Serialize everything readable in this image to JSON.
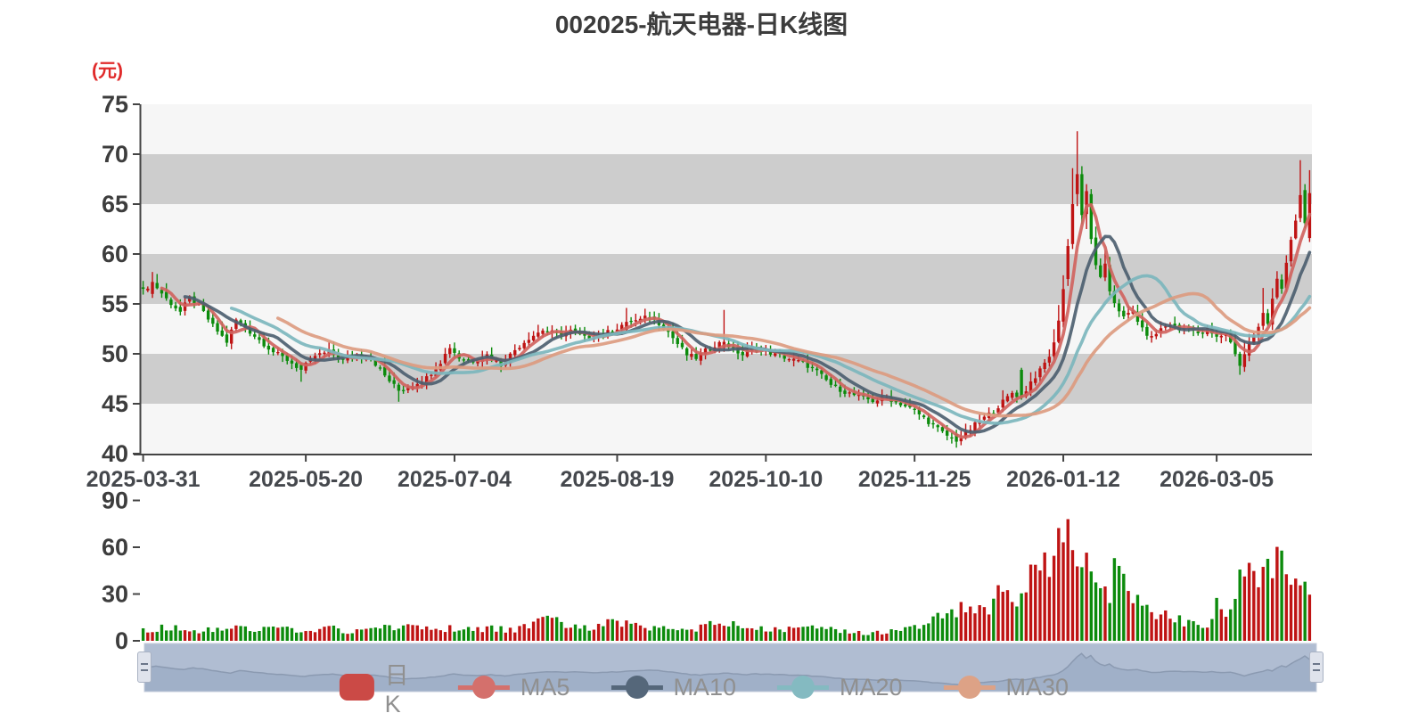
{
  "title": "002025-航天电器-日K线图",
  "unit_label": "(元)",
  "legend": [
    {
      "key": "rik",
      "label": "日K",
      "type": "candle",
      "color": "#cb4a46"
    },
    {
      "key": "ma5",
      "label": "MA5",
      "type": "line",
      "color": "#d4706c"
    },
    {
      "key": "ma10",
      "label": "MA10",
      "type": "line",
      "color": "#55677a"
    },
    {
      "key": "ma20",
      "label": "MA20",
      "type": "line",
      "color": "#84bac1"
    },
    {
      "key": "ma30",
      "label": "MA30",
      "type": "line",
      "color": "#dda286"
    }
  ],
  "colors": {
    "up": "#bf1414",
    "down": "#0c8b0c",
    "ma5": "#d0645f",
    "ma10": "#4d6070",
    "ma20": "#7cb6bd",
    "ma30": "#dc9b80",
    "band_gray": "#cdcdcd",
    "band_light": "#f6f6f6",
    "axis": "#444444",
    "tick_text": "#3d3d3d",
    "x_text": "#45484d",
    "legend_text": "#909090",
    "nav_bg": "#b0bdd2",
    "nav_fill": "#a0b0c8",
    "nav_line": "#8b9ab1",
    "nav_border": "#c3cbdb",
    "unit_red": "#e02a2a"
  },
  "chart_data": {
    "type": "candlestick",
    "title": "002025-航天电器-日K线图",
    "unit": "(元)",
    "price_axis": {
      "ticks": [
        75,
        70,
        65,
        60,
        55,
        50,
        45,
        40
      ],
      "range": [
        40,
        75
      ]
    },
    "volume_axis": {
      "ticks": [
        90,
        60,
        30,
        0
      ],
      "range": [
        0,
        90
      ]
    },
    "x_tick_labels": [
      {
        "label": "2025-03-31",
        "day": 0
      },
      {
        "label": "2025-05-20",
        "day": 35
      },
      {
        "label": "2025-07-04",
        "day": 67
      },
      {
        "label": "2025-08-19",
        "day": 102
      },
      {
        "label": "2025-10-10",
        "day": 134
      },
      {
        "label": "2025-11-25",
        "day": 166
      },
      {
        "label": "2026-01-12",
        "day": 198
      },
      {
        "label": "2026-03-05",
        "day": 231
      }
    ],
    "trading_days": 252,
    "series_names": [
      "日K",
      "MA5",
      "MA10",
      "MA20",
      "MA30"
    ],
    "key_points": {
      "start_close": 56.3,
      "period_high": 72.3,
      "period_high_day": 201,
      "period_low": 40.6,
      "period_low_day": 175,
      "last_close": 66.1,
      "max_volume": 78,
      "max_volume_day": 199
    },
    "close_anchors": [
      [
        0,
        56.3
      ],
      [
        2,
        57.2
      ],
      [
        5,
        55.5
      ],
      [
        8,
        54.2
      ],
      [
        10,
        55.6
      ],
      [
        12,
        54.8
      ],
      [
        15,
        52.8
      ],
      [
        18,
        51.2
      ],
      [
        20,
        53.4
      ],
      [
        22,
        52.6
      ],
      [
        25,
        51.4
      ],
      [
        28,
        50.2
      ],
      [
        31,
        49.4
      ],
      [
        34,
        48.4
      ],
      [
        37,
        49.8
      ],
      [
        40,
        50.2
      ],
      [
        43,
        49.3
      ],
      [
        46,
        49.9
      ],
      [
        49,
        49.6
      ],
      [
        52,
        47.8
      ],
      [
        55,
        46.3
      ],
      [
        58,
        46.9
      ],
      [
        61,
        47.6
      ],
      [
        64,
        49.2
      ],
      [
        66,
        50.7
      ],
      [
        68,
        49.6
      ],
      [
        71,
        49.3
      ],
      [
        74,
        49.9
      ],
      [
        77,
        48.9
      ],
      [
        80,
        50.4
      ],
      [
        83,
        51.6
      ],
      [
        86,
        52.4
      ],
      [
        89,
        52.0
      ],
      [
        92,
        52.3
      ],
      [
        95,
        51.6
      ],
      [
        98,
        51.9
      ],
      [
        101,
        52.3
      ],
      [
        104,
        53.2
      ],
      [
        107,
        53.4
      ],
      [
        109,
        53.8
      ],
      [
        111,
        53.1
      ],
      [
        113,
        52.2
      ],
      [
        115,
        51.0
      ],
      [
        117,
        49.9
      ],
      [
        119,
        49.6
      ],
      [
        121,
        50.3
      ],
      [
        123,
        50.9
      ],
      [
        125,
        51.2
      ],
      [
        127,
        50.4
      ],
      [
        129,
        49.9
      ],
      [
        131,
        50.6
      ],
      [
        133,
        50.3
      ],
      [
        136,
        50.0
      ],
      [
        139,
        49.5
      ],
      [
        142,
        49.1
      ],
      [
        145,
        48.2
      ],
      [
        148,
        46.9
      ],
      [
        151,
        46.2
      ],
      [
        154,
        45.7
      ],
      [
        157,
        45.3
      ],
      [
        160,
        45.6
      ],
      [
        163,
        45.0
      ],
      [
        166,
        44.3
      ],
      [
        169,
        43.2
      ],
      [
        172,
        42.1
      ],
      [
        175,
        41.2
      ],
      [
        177,
        42.0
      ],
      [
        179,
        42.9
      ],
      [
        181,
        43.6
      ],
      [
        183,
        44.3
      ],
      [
        185,
        45.2
      ],
      [
        187,
        46.1
      ],
      [
        189,
        45.6
      ],
      [
        191,
        47.2
      ],
      [
        193,
        48.3
      ],
      [
        195,
        49.8
      ],
      [
        196,
        51.0
      ],
      [
        197,
        53.5
      ],
      [
        198,
        56.5
      ],
      [
        199,
        60.8
      ],
      [
        200,
        65.0
      ],
      [
        201,
        68.0
      ],
      [
        202,
        63.9
      ],
      [
        203,
        66.3
      ],
      [
        204,
        61.5
      ],
      [
        205,
        59.0
      ],
      [
        206,
        57.5
      ],
      [
        207,
        58.8
      ],
      [
        208,
        56.3
      ],
      [
        209,
        55.2
      ],
      [
        211,
        53.6
      ],
      [
        213,
        54.3
      ],
      [
        215,
        52.4
      ],
      [
        217,
        51.6
      ],
      [
        219,
        52.5
      ],
      [
        221,
        53.0
      ],
      [
        223,
        52.4
      ],
      [
        225,
        52.8
      ],
      [
        227,
        51.9
      ],
      [
        229,
        52.4
      ],
      [
        231,
        51.6
      ],
      [
        233,
        52.1
      ],
      [
        235,
        50.1
      ],
      [
        236,
        48.8
      ],
      [
        237,
        49.9
      ],
      [
        238,
        51.1
      ],
      [
        240,
        52.6
      ],
      [
        241,
        54.1
      ],
      [
        242,
        53.2
      ],
      [
        243,
        55.6
      ],
      [
        244,
        57.6
      ],
      [
        245,
        56.4
      ],
      [
        246,
        58.9
      ],
      [
        247,
        61.4
      ],
      [
        248,
        63.3
      ],
      [
        249,
        65.9
      ],
      [
        250,
        63.1
      ],
      [
        251,
        66.1
      ]
    ],
    "volume_anchors": [
      [
        0,
        7
      ],
      [
        5,
        9
      ],
      [
        10,
        6
      ],
      [
        15,
        8
      ],
      [
        20,
        10
      ],
      [
        25,
        7
      ],
      [
        30,
        9
      ],
      [
        35,
        6
      ],
      [
        40,
        8
      ],
      [
        45,
        6
      ],
      [
        50,
        9
      ],
      [
        55,
        8
      ],
      [
        60,
        10
      ],
      [
        65,
        8
      ],
      [
        70,
        7
      ],
      [
        75,
        8
      ],
      [
        80,
        7
      ],
      [
        85,
        12
      ],
      [
        88,
        18
      ],
      [
        92,
        9
      ],
      [
        96,
        8
      ],
      [
        100,
        13
      ],
      [
        104,
        11
      ],
      [
        108,
        9
      ],
      [
        112,
        8
      ],
      [
        116,
        7
      ],
      [
        120,
        8
      ],
      [
        125,
        13
      ],
      [
        128,
        8
      ],
      [
        132,
        7
      ],
      [
        136,
        8
      ],
      [
        140,
        7
      ],
      [
        144,
        9
      ],
      [
        148,
        8
      ],
      [
        152,
        6
      ],
      [
        156,
        5
      ],
      [
        160,
        6
      ],
      [
        164,
        7
      ],
      [
        167,
        10
      ],
      [
        170,
        13
      ],
      [
        173,
        16
      ],
      [
        176,
        24
      ],
      [
        179,
        20
      ],
      [
        181,
        17
      ],
      [
        183,
        28
      ],
      [
        185,
        32
      ],
      [
        187,
        26
      ],
      [
        189,
        30
      ],
      [
        191,
        44
      ],
      [
        193,
        40
      ],
      [
        195,
        50
      ],
      [
        196,
        56
      ],
      [
        197,
        62
      ],
      [
        198,
        70
      ],
      [
        199,
        78
      ],
      [
        200,
        62
      ],
      [
        201,
        57
      ],
      [
        202,
        64
      ],
      [
        204,
        50
      ],
      [
        206,
        39
      ],
      [
        208,
        34
      ],
      [
        209,
        46
      ],
      [
        211,
        36
      ],
      [
        213,
        26
      ],
      [
        215,
        22
      ],
      [
        217,
        21
      ],
      [
        219,
        16
      ],
      [
        221,
        15
      ],
      [
        223,
        13
      ],
      [
        225,
        12
      ],
      [
        227,
        10
      ],
      [
        229,
        9
      ],
      [
        231,
        22
      ],
      [
        233,
        18
      ],
      [
        235,
        26
      ],
      [
        237,
        52
      ],
      [
        239,
        54
      ],
      [
        241,
        38
      ],
      [
        243,
        44
      ],
      [
        244,
        48
      ],
      [
        246,
        42
      ],
      [
        248,
        36
      ],
      [
        249,
        31
      ],
      [
        251,
        29
      ]
    ],
    "candle_overrides": {
      "2": [
        56.0,
        58.2,
        55.6,
        57.2
      ],
      "34": [
        48.9,
        49.1,
        47.2,
        48.4
      ],
      "55": [
        46.9,
        47.1,
        45.2,
        46.3
      ],
      "104": [
        52.4,
        54.6,
        52.2,
        53.2
      ],
      "125": [
        50.6,
        54.4,
        50.2,
        51.2
      ],
      "175": [
        42.0,
        42.4,
        40.6,
        41.2
      ],
      "189": [
        48.4,
        48.6,
        45.4,
        45.6
      ],
      "199": [
        57.5,
        61.5,
        56.8,
        60.8
      ],
      "200": [
        61.0,
        68.6,
        60.5,
        65.0
      ],
      "201": [
        66.0,
        72.3,
        64.8,
        68.0
      ],
      "202": [
        68.0,
        68.8,
        63.0,
        63.9
      ],
      "203": [
        64.0,
        67.0,
        62.5,
        66.3
      ],
      "204": [
        66.0,
        66.5,
        61.0,
        61.5
      ],
      "236": [
        50.0,
        50.2,
        47.9,
        48.8
      ],
      "241": [
        52.8,
        56.6,
        52.4,
        54.1
      ],
      "249": [
        63.6,
        69.4,
        63.2,
        65.9
      ],
      "250": [
        66.4,
        67.0,
        62.6,
        63.1
      ],
      "251": [
        61.6,
        68.4,
        61.2,
        66.1
      ]
    },
    "volume_overrides": {
      "199": 78
    }
  }
}
